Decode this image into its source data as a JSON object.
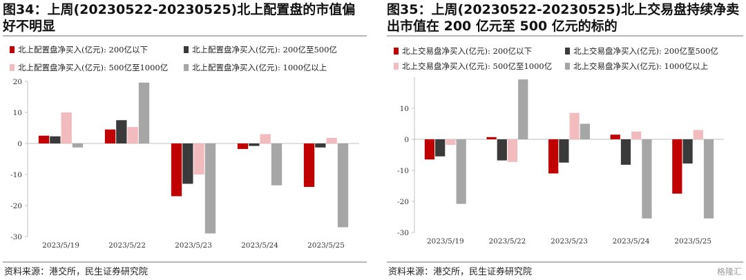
{
  "source_label": "资料来源：港交所，民生证券研究院",
  "watermark": "格隆汇",
  "colors": {
    "under_200": "#c00000",
    "b200_500": "#3a3a3a",
    "b500_1000": "#f2bcbe",
    "over_1000": "#a6a6a6"
  },
  "chart_data": [
    {
      "type": "bar",
      "title": "图34：上周(20230522-20230525)北上配置盘的市值偏好不明显",
      "categories": [
        "2023/5/19",
        "2023/5/22",
        "2023/5/23",
        "2023/5/24",
        "2023/5/25"
      ],
      "ylim": [
        -30,
        20
      ],
      "yticks": [
        -30,
        -20,
        -10,
        0,
        10,
        20
      ],
      "legend_placement": "top",
      "series": [
        {
          "name": "北上配置盘净买入(亿元): 200亿以下",
          "values": [
            2.5,
            4.5,
            -17.0,
            -1.8,
            -14.0
          ]
        },
        {
          "name": "北上配置盘净买入(亿元): 200亿至500亿",
          "values": [
            2.3,
            7.5,
            -13.0,
            -0.8,
            -1.3
          ]
        },
        {
          "name": "北上配置盘净买入(亿元): 500亿至1000亿",
          "values": [
            10.0,
            5.3,
            -10.0,
            3.0,
            1.8
          ]
        },
        {
          "name": "北上配置盘净买入(亿元): 1000亿以上",
          "values": [
            -1.3,
            19.6,
            -29.0,
            -13.5,
            -27.0
          ]
        }
      ]
    },
    {
      "type": "bar",
      "title": "图35：上周(20230522-20230525)北上交易盘持续净卖出市值在 200 亿元至 500 亿元的标的",
      "categories": [
        "2023/5/19",
        "2023/5/22",
        "2023/5/23",
        "2023/5/24",
        "2023/5/25"
      ],
      "ylim": [
        -30,
        20
      ],
      "yticks": [
        -30,
        -20,
        -10,
        0,
        10
      ],
      "legend_placement": "top",
      "series": [
        {
          "name": "北上交易盘净买入(亿元): 200亿以下",
          "values": [
            -6.5,
            0.7,
            -11.0,
            1.5,
            -17.5
          ]
        },
        {
          "name": "北上交易盘净买入(亿元): 200亿至500亿",
          "values": [
            -5.5,
            -6.8,
            -7.5,
            -8.2,
            -7.8
          ]
        },
        {
          "name": "北上交易盘净买入(亿元): 500亿至1000亿",
          "values": [
            -1.8,
            -7.3,
            8.5,
            2.5,
            3.0
          ]
        },
        {
          "name": "北上交易盘净买入(亿元): 1000亿以上",
          "values": [
            -20.8,
            19.3,
            5.0,
            -25.5,
            -25.5
          ]
        }
      ]
    }
  ]
}
